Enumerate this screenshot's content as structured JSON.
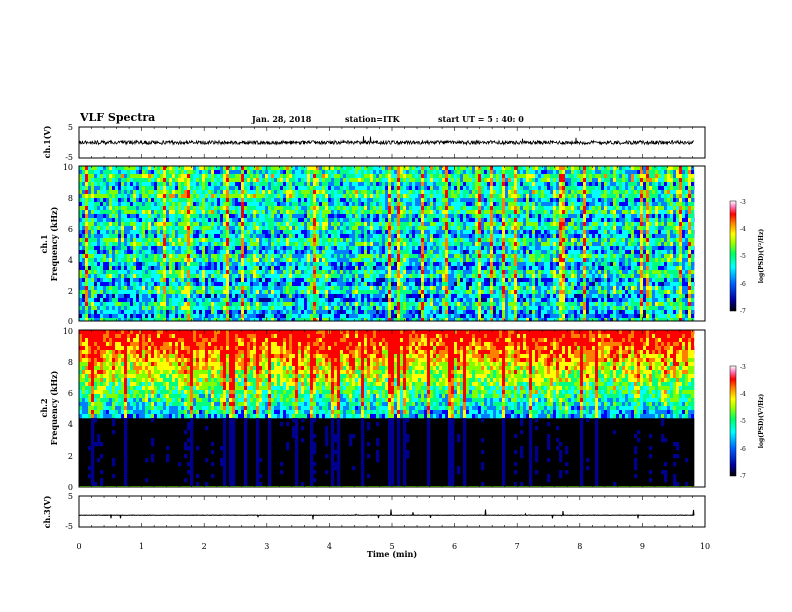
{
  "header": {
    "title": "VLF Spectra",
    "date": "Jan. 28, 2018",
    "station": "station=ITK",
    "start": "start UT =  5 : 40: 0"
  },
  "colors": {
    "waveform": "#000000",
    "background": "#ffffff",
    "colormap": [
      "#000000",
      "#00008f",
      "#0000ff",
      "#0080ff",
      "#00ffff",
      "#00ff80",
      "#80ff00",
      "#ffff00",
      "#ff8000",
      "#ff0000",
      "#ff00ff",
      "#ffffff"
    ]
  },
  "chart_data": [
    {
      "type": "line",
      "panel": "ch1-waveform",
      "ylabel": "ch.1(V)",
      "ylim": [
        -5,
        5
      ],
      "yticks": [
        5,
        -5
      ],
      "xlim": [
        0,
        10
      ],
      "trace_level": 0,
      "trace_extent": [
        0,
        9.83
      ]
    },
    {
      "type": "heatmap",
      "panel": "ch1-spectrogram",
      "ylabel_line1": "ch.1",
      "ylabel_line2": "Frequency (kHz)",
      "ylim": [
        0,
        10
      ],
      "yticks": [
        0,
        2,
        4,
        6,
        8,
        10
      ],
      "xlim": [
        0,
        10
      ],
      "data_extent": [
        0,
        9.83
      ],
      "colorbar": {
        "label": "log(PSD)(V²/Hz)",
        "range": [
          -7,
          -3
        ],
        "ticks": [
          -3,
          -4,
          -5,
          -6,
          -7
        ]
      }
    },
    {
      "type": "heatmap",
      "panel": "ch2-spectrogram",
      "ylabel_line1": "ch.2",
      "ylabel_line2": "Frequency (kHz)",
      "ylim": [
        0,
        10
      ],
      "yticks": [
        0,
        2,
        4,
        6,
        8,
        10
      ],
      "xlim": [
        0,
        10
      ],
      "data_extent": [
        0,
        9.83
      ],
      "colorbar": {
        "label": "log(PSD)(V²/Hz)",
        "range": [
          -7,
          -3
        ],
        "ticks": [
          -3,
          -4,
          -5,
          -6,
          -7
        ]
      }
    },
    {
      "type": "line",
      "panel": "ch3-waveform",
      "ylabel": "ch.3(V)",
      "ylim": [
        -5,
        5
      ],
      "yticks": [
        5,
        -5
      ],
      "xlim": [
        0,
        10
      ],
      "trace_level": -1.2,
      "trace_extent": [
        0,
        9.83
      ]
    }
  ],
  "xaxis": {
    "label": "Time (min)",
    "ticks": [
      0,
      1,
      2,
      3,
      4,
      5,
      6,
      7,
      8,
      9,
      10
    ],
    "range": [
      0,
      10
    ]
  }
}
